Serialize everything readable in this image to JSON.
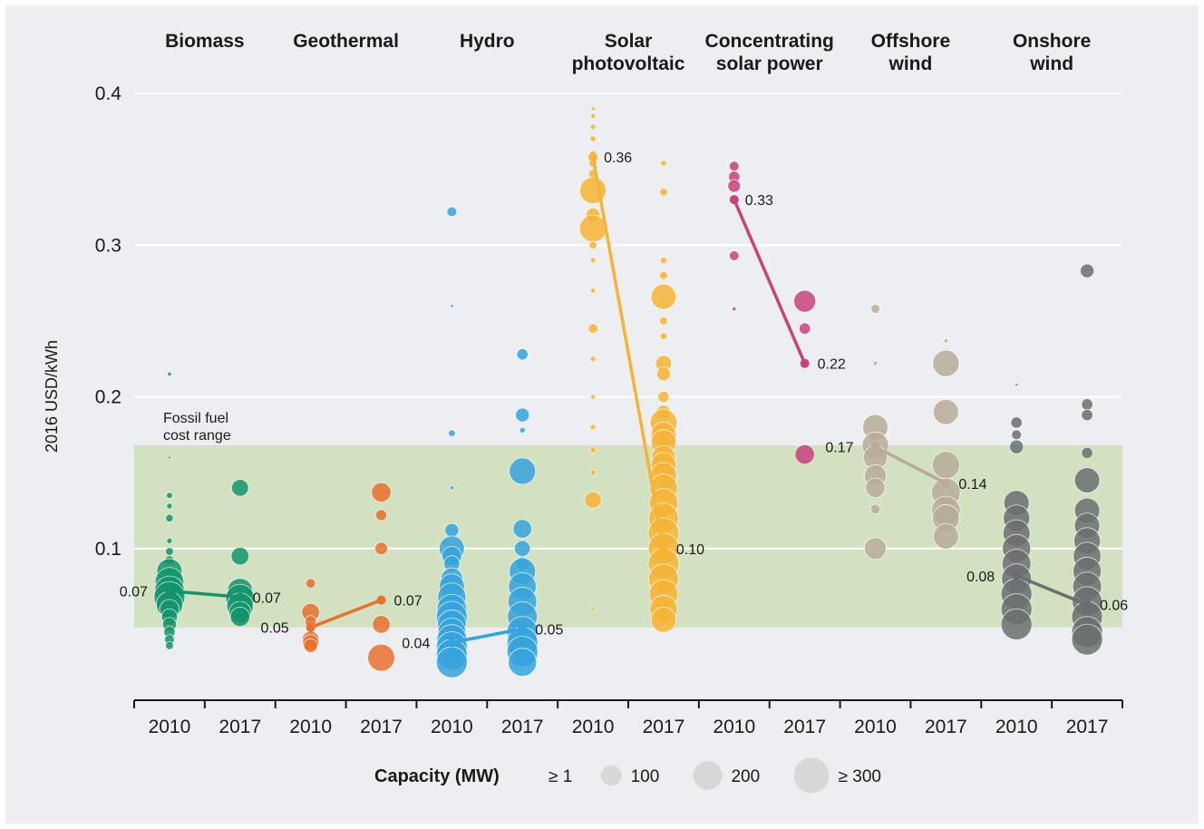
{
  "chart_data": {
    "type": "scatter",
    "ylabel": "2016 USD/kWh",
    "ylim": [
      0,
      0.4
    ],
    "yticks": [
      0.1,
      0.2,
      0.3,
      0.4
    ],
    "ytick_labels": [
      "0.1",
      "0.2",
      "0.3",
      "0.4"
    ],
    "band": {
      "label_line1": "Fossil fuel",
      "label_line2": "cost range",
      "range": [
        0.048,
        0.168
      ],
      "color": "#c9dcae"
    },
    "legend": {
      "title": "Capacity (MW)",
      "entries": [
        {
          "label": "≥ 1",
          "mw": 1
        },
        {
          "label": "100",
          "mw": 100
        },
        {
          "label": "200",
          "mw": 200
        },
        {
          "label": "≥ 300",
          "mw": 300
        }
      ]
    },
    "technologies": [
      {
        "name_line1": "Biomass",
        "name_line2": "",
        "color": "#14946c",
        "years": [
          "2010",
          "2017"
        ],
        "avg": [
          0.072,
          0.068
        ],
        "avg_labels": [
          "0.07",
          "0.07"
        ],
        "points": [
          [
            [
              0.215,
              5
            ],
            [
              0.16,
              2
            ],
            [
              0.135,
              12
            ],
            [
              0.128,
              10
            ],
            [
              0.12,
              18
            ],
            [
              0.105,
              10
            ],
            [
              0.098,
              20
            ],
            [
              0.092,
              30
            ],
            [
              0.085,
              200
            ],
            [
              0.078,
              260
            ],
            [
              0.072,
              280
            ],
            [
              0.068,
              300
            ],
            [
              0.063,
              220
            ],
            [
              0.06,
              120
            ],
            [
              0.055,
              80
            ],
            [
              0.05,
              60
            ],
            [
              0.045,
              40
            ],
            [
              0.04,
              30
            ],
            [
              0.036,
              20
            ]
          ],
          [
            [
              0.14,
              90
            ],
            [
              0.095,
              100
            ],
            [
              0.072,
              200
            ],
            [
              0.067,
              260
            ],
            [
              0.062,
              220
            ],
            [
              0.058,
              150
            ],
            [
              0.055,
              120
            ]
          ]
        ]
      },
      {
        "name_line1": "Geothermal",
        "name_line2": "",
        "color": "#e8712f",
        "years": [
          "2010",
          "2017"
        ],
        "avg": [
          0.048,
          0.066
        ],
        "avg_labels": [
          "0.05",
          "0.07"
        ],
        "points": [
          [
            [
              0.077,
              30
            ],
            [
              0.058,
              100
            ],
            [
              0.052,
              40
            ],
            [
              0.04,
              90
            ],
            [
              0.038,
              80
            ],
            [
              0.036,
              60
            ]
          ],
          [
            [
              0.137,
              120
            ],
            [
              0.122,
              40
            ],
            [
              0.1,
              50
            ],
            [
              0.05,
              100
            ],
            [
              0.028,
              230
            ]
          ]
        ]
      },
      {
        "name_line1": "Hydro",
        "name_line2": "",
        "color": "#36a3dc",
        "years": [
          "2010",
          "2017"
        ],
        "avg": [
          0.038,
          0.047
        ],
        "avg_labels": [
          "0.04",
          "0.05"
        ],
        "points": [
          [
            [
              0.322,
              30
            ],
            [
              0.26,
              3
            ],
            [
              0.176,
              15
            ],
            [
              0.14,
              5
            ],
            [
              0.112,
              60
            ],
            [
              0.1,
              200
            ],
            [
              0.095,
              120
            ],
            [
              0.09,
              80
            ],
            [
              0.08,
              150
            ],
            [
              0.075,
              200
            ],
            [
              0.068,
              250
            ],
            [
              0.06,
              280
            ],
            [
              0.055,
              300
            ],
            [
              0.05,
              260
            ],
            [
              0.045,
              240
            ],
            [
              0.04,
              280
            ],
            [
              0.035,
              300
            ],
            [
              0.03,
              300
            ],
            [
              0.025,
              300
            ]
          ],
          [
            [
              0.228,
              40
            ],
            [
              0.188,
              60
            ],
            [
              0.178,
              10
            ],
            [
              0.151,
              220
            ],
            [
              0.113,
              110
            ],
            [
              0.1,
              80
            ],
            [
              0.09,
              60
            ],
            [
              0.085,
              220
            ],
            [
              0.075,
              240
            ],
            [
              0.065,
              260
            ],
            [
              0.055,
              280
            ],
            [
              0.045,
              300
            ],
            [
              0.038,
              300
            ],
            [
              0.032,
              300
            ],
            [
              0.025,
              250
            ]
          ]
        ]
      },
      {
        "name_line1": "Solar",
        "name_line2": "photovoltaic",
        "color": "#f6b436",
        "years": [
          "2010",
          "2017"
        ],
        "avg": [
          0.358,
          0.1
        ],
        "avg_labels": [
          "0.36",
          "0.10"
        ],
        "points": [
          [
            [
              0.39,
              5
            ],
            [
              0.385,
              8
            ],
            [
              0.378,
              10
            ],
            [
              0.37,
              12
            ],
            [
              0.36,
              15
            ],
            [
              0.354,
              20
            ],
            [
              0.347,
              25
            ],
            [
              0.336,
              220
            ],
            [
              0.32,
              60
            ],
            [
              0.311,
              230
            ],
            [
              0.3,
              20
            ],
            [
              0.29,
              10
            ],
            [
              0.27,
              8
            ],
            [
              0.245,
              30
            ],
            [
              0.225,
              10
            ],
            [
              0.2,
              8
            ],
            [
              0.18,
              10
            ],
            [
              0.165,
              12
            ],
            [
              0.15,
              10
            ],
            [
              0.132,
              90
            ],
            [
              0.06,
              4
            ]
          ],
          [
            [
              0.354,
              10
            ],
            [
              0.335,
              20
            ],
            [
              0.29,
              15
            ],
            [
              0.28,
              20
            ],
            [
              0.266,
              200
            ],
            [
              0.25,
              20
            ],
            [
              0.24,
              15
            ],
            [
              0.222,
              80
            ],
            [
              0.215,
              60
            ],
            [
              0.2,
              40
            ],
            [
              0.19,
              60
            ],
            [
              0.183,
              230
            ],
            [
              0.175,
              200
            ],
            [
              0.17,
              200
            ],
            [
              0.16,
              180
            ],
            [
              0.155,
              200
            ],
            [
              0.148,
              220
            ],
            [
              0.14,
              240
            ],
            [
              0.13,
              260
            ],
            [
              0.12,
              280
            ],
            [
              0.11,
              300
            ],
            [
              0.1,
              300
            ],
            [
              0.09,
              300
            ],
            [
              0.08,
              280
            ],
            [
              0.07,
              260
            ],
            [
              0.06,
              240
            ],
            [
              0.053,
              200
            ]
          ]
        ]
      },
      {
        "name_line1": "Concentrating",
        "name_line2": "solar power",
        "color": "#c7437a",
        "years": [
          "2010",
          "2017"
        ],
        "avg": [
          0.33,
          0.222
        ],
        "avg_labels": [
          "0.33",
          "0.22"
        ],
        "points": [
          [
            [
              0.352,
              30
            ],
            [
              0.345,
              40
            ],
            [
              0.339,
              50
            ],
            [
              0.293,
              30
            ],
            [
              0.258,
              5
            ]
          ],
          [
            [
              0.263,
              150
            ],
            [
              0.245,
              40
            ],
            [
              0.162,
              120
            ]
          ]
        ]
      },
      {
        "name_line1": "Offshore",
        "name_line2": "wind",
        "color": "#b7ac98",
        "years": [
          "2010",
          "2017"
        ],
        "avg": [
          0.167,
          0.143
        ],
        "avg_labels": [
          "0.17",
          "0.14"
        ],
        "points": [
          [
            [
              0.258,
              25
            ],
            [
              0.222,
              5
            ],
            [
              0.18,
              200
            ],
            [
              0.168,
              220
            ],
            [
              0.16,
              180
            ],
            [
              0.148,
              150
            ],
            [
              0.14,
              120
            ],
            [
              0.126,
              30
            ],
            [
              0.1,
              150
            ]
          ],
          [
            [
              0.237,
              5
            ],
            [
              0.222,
              220
            ],
            [
              0.19,
              200
            ],
            [
              0.155,
              240
            ],
            [
              0.137,
              260
            ],
            [
              0.125,
              260
            ],
            [
              0.12,
              230
            ],
            [
              0.108,
              200
            ]
          ]
        ]
      },
      {
        "name_line1": "Onshore",
        "name_line2": "wind",
        "color": "#6b6e70",
        "years": [
          "2010",
          "2017"
        ],
        "avg": [
          0.082,
          0.063
        ],
        "avg_labels": [
          "0.08",
          "0.06"
        ],
        "points": [
          [
            [
              0.208,
              2
            ],
            [
              0.183,
              40
            ],
            [
              0.175,
              30
            ],
            [
              0.167,
              60
            ],
            [
              0.13,
              200
            ],
            [
              0.12,
              220
            ],
            [
              0.11,
              230
            ],
            [
              0.1,
              250
            ],
            [
              0.09,
              260
            ],
            [
              0.08,
              280
            ],
            [
              0.07,
              300
            ],
            [
              0.06,
              300
            ],
            [
              0.05,
              300
            ]
          ],
          [
            [
              0.283,
              60
            ],
            [
              0.195,
              40
            ],
            [
              0.188,
              40
            ],
            [
              0.163,
              40
            ],
            [
              0.145,
              200
            ],
            [
              0.125,
              200
            ],
            [
              0.115,
              200
            ],
            [
              0.105,
              220
            ],
            [
              0.095,
              240
            ],
            [
              0.085,
              250
            ],
            [
              0.075,
              260
            ],
            [
              0.065,
              280
            ],
            [
              0.055,
              300
            ],
            [
              0.045,
              300
            ],
            [
              0.04,
              300
            ]
          ]
        ]
      }
    ]
  }
}
